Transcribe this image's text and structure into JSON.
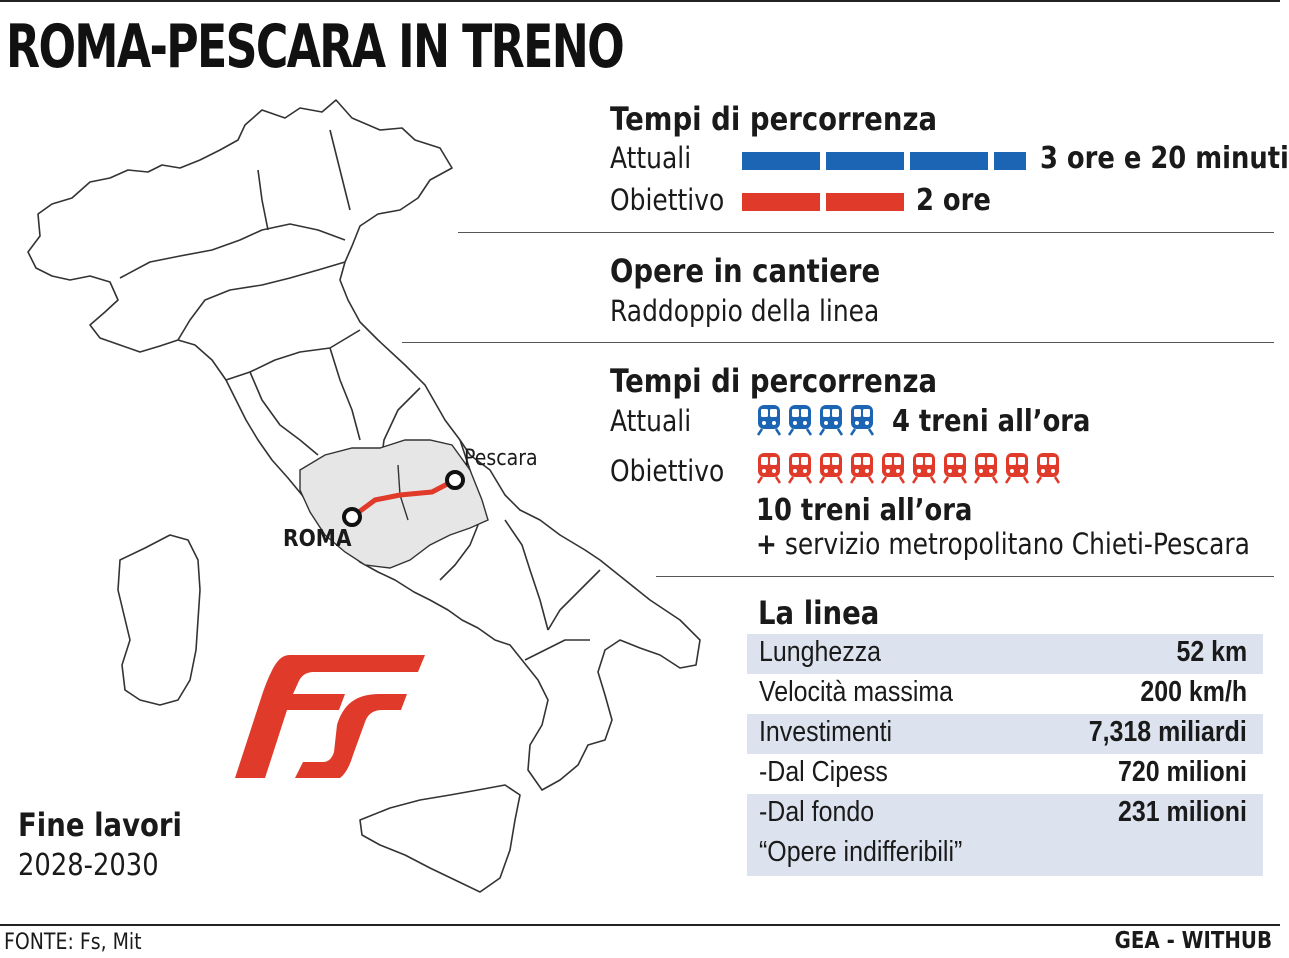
{
  "title": "ROMA-PESCARA IN TRENO",
  "colors": {
    "blue": "#1c64b4",
    "red": "#e03a2a",
    "shade": "#dce3ee",
    "region": "#e6e6e6"
  },
  "tempi1": {
    "heading": "Tempi di percorrenza",
    "attuali_label": "Attuali",
    "attuali_value": "3 ore e 20 minuti",
    "obiettivo_label": "Obiettivo",
    "obiettivo_value": "2 ore"
  },
  "opere": {
    "heading": "Opere in cantiere",
    "text": "Raddoppio della linea"
  },
  "tempi2": {
    "heading": "Tempi di percorrenza",
    "attuali_label": "Attuali",
    "attuali_value": "4 treni all’ora",
    "attuali_count": 4,
    "obiettivo_label": "Obiettivo",
    "obiettivo_count": 10,
    "obiettivo_value": "10 treni all’ora",
    "plus_sign": "+",
    "extra": "servizio metropolitano Chieti-Pescara"
  },
  "linea": {
    "heading": "La linea",
    "rows": [
      {
        "label": "Lunghezza",
        "value": "52 km"
      },
      {
        "label": "Velocità massima",
        "value": "200 km/h"
      },
      {
        "label": "Investimenti",
        "value": "7,318 miliardi"
      },
      {
        "label": "-Dal Cipess",
        "value": "720 milioni"
      },
      {
        "label": "-Dal fondo",
        "value": "231 milioni"
      },
      {
        "label": "“Opere indifferibili”",
        "value": ""
      }
    ]
  },
  "map": {
    "city_roma": "ROMA",
    "city_pescara": "Pescara"
  },
  "fine": {
    "heading": "Fine lavori",
    "years": "2028-2030"
  },
  "footer": {
    "source": "FONTE: Fs, Mit",
    "credit": "GEA - WITHUB"
  },
  "icons": {
    "train": "train-icon",
    "logo": "fs-logo"
  }
}
